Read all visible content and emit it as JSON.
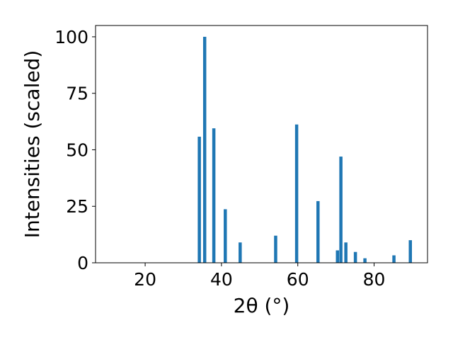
{
  "chart_data": {
    "type": "bar",
    "title": "",
    "xlabel": "2θ (°)",
    "ylabel": "Intensities (scaled)",
    "xlim": [
      7,
      94
    ],
    "ylim": [
      0,
      105
    ],
    "xticks": [
      20,
      40,
      60,
      80
    ],
    "yticks": [
      0,
      25,
      50,
      75,
      100
    ],
    "grid": false,
    "bar_color": "#1f77b4",
    "x": [
      34.2,
      35.6,
      38.0,
      41.0,
      44.9,
      54.2,
      59.7,
      65.3,
      70.4,
      71.3,
      72.6,
      75.1,
      77.6,
      85.2,
      89.5
    ],
    "values": [
      55.8,
      100.0,
      59.5,
      23.7,
      9.0,
      12.0,
      61.2,
      27.3,
      5.5,
      47.0,
      9.0,
      4.8,
      2.0,
      3.3,
      10.0
    ]
  }
}
